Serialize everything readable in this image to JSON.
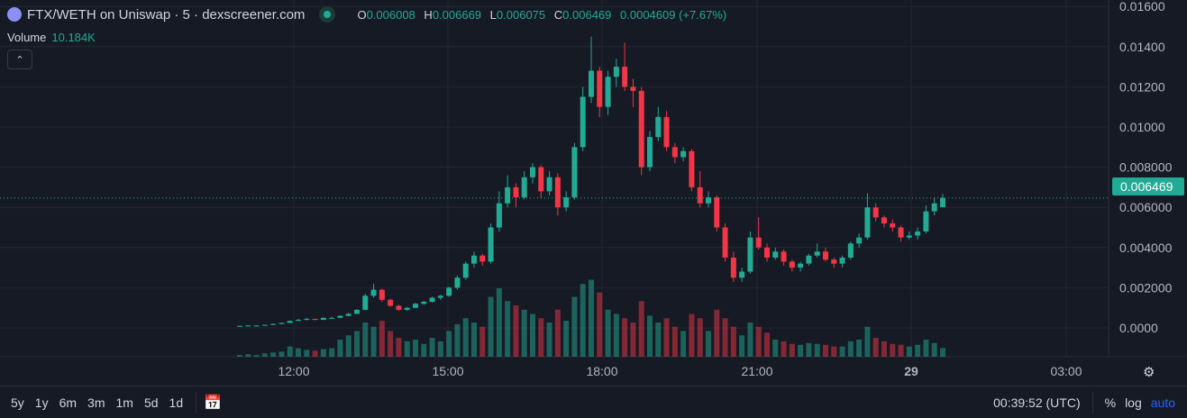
{
  "header": {
    "title": "FTX/WETH on Uniswap · 5 · dexscreener.com",
    "open_label": "O",
    "open": "0.006008",
    "high_label": "H",
    "high": "0.006669",
    "low_label": "L",
    "low": "0.006075",
    "close_label": "C",
    "close": "0.006469",
    "change": "0.0004609 (+7.67%)"
  },
  "volume": {
    "label": "Volume",
    "value": "10.184K"
  },
  "current_price": "0.006469",
  "colors": {
    "up": "#22ab94",
    "down": "#f23645",
    "background": "#161a25",
    "accent": "#2962ff"
  },
  "footer": {
    "ranges": [
      "5y",
      "1y",
      "6m",
      "3m",
      "1m",
      "5d",
      "1d"
    ],
    "clock": "00:39:52 (UTC)",
    "percent": "%",
    "log": "log",
    "auto": "auto"
  },
  "chart_data": {
    "type": "candlestick",
    "interval": "5",
    "y_ticks": [
      "0.01600",
      "0.01400",
      "0.01200",
      "0.01000",
      "0.008000",
      "0.006000",
      "0.004000",
      "0.002000",
      "0.0000"
    ],
    "y_tick_values": [
      0.016,
      0.014,
      0.012,
      0.01,
      0.008,
      0.006,
      0.004,
      0.002,
      0
    ],
    "ylim": [
      0,
      0.016
    ],
    "x_ticks": [
      "12:00",
      "15:00",
      "18:00",
      "21:00",
      "29",
      "03:00"
    ],
    "volume_unit": "K",
    "candles_ohlcv": [
      [
        9e-05,
        0.00011,
        9e-05,
        0.0001,
        2
      ],
      [
        0.0001,
        0.00013,
        0.0001,
        0.00012,
        3
      ],
      [
        0.00012,
        0.00013,
        0.00011,
        0.00012,
        2
      ],
      [
        0.00012,
        0.00016,
        0.00012,
        0.00015,
        4
      ],
      [
        0.00015,
        0.00022,
        0.00014,
        0.0002,
        5
      ],
      [
        0.0002,
        0.00027,
        0.00019,
        0.00025,
        6
      ],
      [
        0.00025,
        0.00037,
        0.00024,
        0.00035,
        12
      ],
      [
        0.00035,
        0.00045,
        0.00033,
        0.0004,
        10
      ],
      [
        0.0004,
        0.0005,
        0.00038,
        0.00045,
        8
      ],
      [
        0.00045,
        0.00046,
        0.00038,
        0.0004,
        7
      ],
      [
        0.0004,
        0.00053,
        0.0004,
        0.0005,
        9
      ],
      [
        0.0005,
        0.00056,
        0.00047,
        0.0005,
        10
      ],
      [
        0.0005,
        0.00063,
        0.00049,
        0.0006,
        20
      ],
      [
        0.0006,
        0.00075,
        0.00058,
        0.0007,
        25
      ],
      [
        0.0007,
        0.00095,
        0.00068,
        0.0009,
        30
      ],
      [
        0.0009,
        0.0017,
        0.00088,
        0.0016,
        40
      ],
      [
        0.0016,
        0.0022,
        0.0015,
        0.0019,
        35
      ],
      [
        0.0019,
        0.00195,
        0.0013,
        0.0014,
        42
      ],
      [
        0.0014,
        0.00145,
        0.00105,
        0.0011,
        30
      ],
      [
        0.0011,
        0.00115,
        0.00085,
        0.0009,
        22
      ],
      [
        0.0009,
        0.00105,
        0.00085,
        0.001,
        18
      ],
      [
        0.001,
        0.00125,
        0.00098,
        0.0012,
        20
      ],
      [
        0.0012,
        0.00135,
        0.00115,
        0.0013,
        15
      ],
      [
        0.0013,
        0.00155,
        0.00125,
        0.0015,
        22
      ],
      [
        0.0015,
        0.00165,
        0.0014,
        0.0016,
        18
      ],
      [
        0.0016,
        0.00205,
        0.00155,
        0.002,
        30
      ],
      [
        0.002,
        0.0026,
        0.0019,
        0.0025,
        38
      ],
      [
        0.0025,
        0.0033,
        0.0024,
        0.0032,
        45
      ],
      [
        0.0032,
        0.0038,
        0.003,
        0.0036,
        40
      ],
      [
        0.0036,
        0.0037,
        0.0031,
        0.0033,
        35
      ],
      [
        0.0033,
        0.0052,
        0.0032,
        0.005,
        70
      ],
      [
        0.005,
        0.0068,
        0.0048,
        0.0062,
        80
      ],
      [
        0.0062,
        0.0076,
        0.006,
        0.007,
        65
      ],
      [
        0.007,
        0.0072,
        0.006,
        0.0065,
        60
      ],
      [
        0.0065,
        0.0078,
        0.0064,
        0.0075,
        55
      ],
      [
        0.0075,
        0.0082,
        0.0072,
        0.008,
        50
      ],
      [
        0.008,
        0.0081,
        0.0065,
        0.0068,
        45
      ],
      [
        0.0068,
        0.0078,
        0.0066,
        0.0075,
        40
      ],
      [
        0.0075,
        0.0077,
        0.0056,
        0.006,
        55
      ],
      [
        0.006,
        0.0068,
        0.0058,
        0.0065,
        42
      ],
      [
        0.0065,
        0.0092,
        0.0064,
        0.009,
        70
      ],
      [
        0.009,
        0.012,
        0.0088,
        0.0115,
        85
      ],
      [
        0.0115,
        0.0145,
        0.0112,
        0.0128,
        90
      ],
      [
        0.0128,
        0.013,
        0.0105,
        0.011,
        75
      ],
      [
        0.011,
        0.0128,
        0.0106,
        0.0125,
        55
      ],
      [
        0.0125,
        0.0134,
        0.012,
        0.013,
        50
      ],
      [
        0.013,
        0.0142,
        0.0118,
        0.012,
        45
      ],
      [
        0.012,
        0.0124,
        0.011,
        0.0118,
        40
      ],
      [
        0.0118,
        0.012,
        0.0076,
        0.008,
        65
      ],
      [
        0.008,
        0.0098,
        0.0078,
        0.0095,
        48
      ],
      [
        0.0095,
        0.011,
        0.0093,
        0.0105,
        40
      ],
      [
        0.0105,
        0.0108,
        0.0088,
        0.009,
        45
      ],
      [
        0.009,
        0.0092,
        0.0082,
        0.0085,
        35
      ],
      [
        0.0085,
        0.009,
        0.0083,
        0.0088,
        30
      ],
      [
        0.0088,
        0.0089,
        0.0068,
        0.007,
        50
      ],
      [
        0.007,
        0.0078,
        0.006,
        0.0062,
        45
      ],
      [
        0.0062,
        0.0068,
        0.006,
        0.0065,
        30
      ],
      [
        0.0065,
        0.0066,
        0.0048,
        0.005,
        55
      ],
      [
        0.005,
        0.0052,
        0.0033,
        0.0035,
        45
      ],
      [
        0.0035,
        0.0038,
        0.0023,
        0.0025,
        35
      ],
      [
        0.0025,
        0.003,
        0.0023,
        0.0028,
        25
      ],
      [
        0.0028,
        0.0048,
        0.0027,
        0.0045,
        40
      ],
      [
        0.0045,
        0.0055,
        0.0039,
        0.004,
        35
      ],
      [
        0.004,
        0.0042,
        0.0033,
        0.0035,
        28
      ],
      [
        0.0035,
        0.004,
        0.0034,
        0.0038,
        20
      ],
      [
        0.0038,
        0.0039,
        0.0031,
        0.0033,
        18
      ],
      [
        0.0033,
        0.0034,
        0.0028,
        0.003,
        15
      ],
      [
        0.003,
        0.0033,
        0.0028,
        0.0032,
        14
      ],
      [
        0.0032,
        0.0037,
        0.0031,
        0.0036,
        16
      ],
      [
        0.0036,
        0.0042,
        0.0035,
        0.0038,
        15
      ],
      [
        0.0038,
        0.004,
        0.0033,
        0.0034,
        14
      ],
      [
        0.0034,
        0.0035,
        0.003,
        0.0032,
        12
      ],
      [
        0.0032,
        0.0036,
        0.003,
        0.0035,
        12
      ],
      [
        0.0035,
        0.0043,
        0.0034,
        0.0042,
        18
      ],
      [
        0.0042,
        0.0047,
        0.004,
        0.0045,
        20
      ],
      [
        0.0045,
        0.0067,
        0.0044,
        0.006,
        35
      ],
      [
        0.006,
        0.0062,
        0.0053,
        0.0055,
        22
      ],
      [
        0.0055,
        0.0056,
        0.005,
        0.0052,
        18
      ],
      [
        0.0052,
        0.0054,
        0.0048,
        0.005,
        15
      ],
      [
        0.005,
        0.0051,
        0.0043,
        0.0045,
        14
      ],
      [
        0.0045,
        0.0048,
        0.0044,
        0.0046,
        12
      ],
      [
        0.0046,
        0.005,
        0.0044,
        0.0048,
        14
      ],
      [
        0.0048,
        0.0061,
        0.0047,
        0.0058,
        20
      ],
      [
        0.0058,
        0.0065,
        0.0056,
        0.0062,
        16
      ],
      [
        0.006008,
        0.006669,
        0.006075,
        0.006469,
        10.184
      ]
    ]
  }
}
